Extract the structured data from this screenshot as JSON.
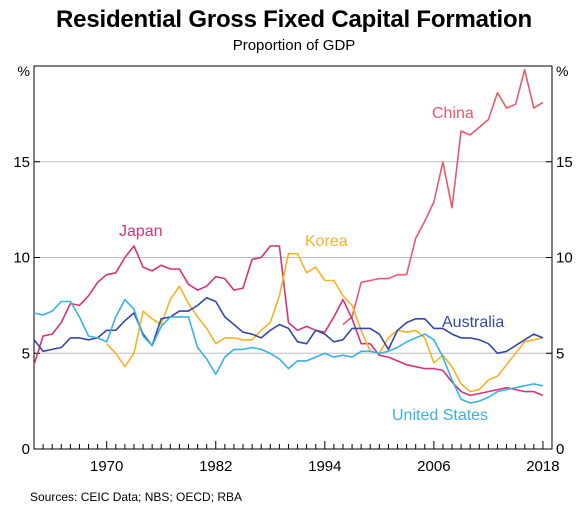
{
  "chart_data": {
    "type": "line",
    "title": "Residential Gross Fixed Capital Formation",
    "subtitle": "Proportion of GDP",
    "unit_left": "%",
    "unit_right": "%",
    "xlim": [
      1962,
      2019
    ],
    "ylim": [
      0,
      20
    ],
    "x_ticks": [
      "1970",
      "1982",
      "1994",
      "2006",
      "2018"
    ],
    "y_ticks": [
      "0",
      "5",
      "10",
      "15"
    ],
    "grid": true,
    "series": [
      {
        "name": "China",
        "color": "#e8596b",
        "x": [
          1996,
          1997,
          1998,
          1999,
          2000,
          2001,
          2002,
          2003,
          2004,
          2005,
          2006,
          2007,
          2008,
          2009,
          2010,
          2011,
          2012,
          2013,
          2014,
          2015,
          2016,
          2017,
          2018
        ],
        "values": [
          6.5,
          6.9,
          8.7,
          8.8,
          8.9,
          8.9,
          9.1,
          9.1,
          11.0,
          11.9,
          12.9,
          15.0,
          12.6,
          16.6,
          16.4,
          16.8,
          17.2,
          18.6,
          17.8,
          18.0,
          19.8,
          17.8,
          18.1
        ]
      },
      {
        "name": "Japan",
        "color": "#d6317b",
        "x": [
          1962,
          1963,
          1964,
          1965,
          1966,
          1967,
          1968,
          1969,
          1970,
          1971,
          1972,
          1973,
          1974,
          1975,
          1976,
          1977,
          1978,
          1979,
          1980,
          1981,
          1982,
          1983,
          1984,
          1985,
          1986,
          1987,
          1988,
          1989,
          1990,
          1991,
          1992,
          1993,
          1994,
          1995,
          1996,
          1997,
          1998,
          1999,
          2000,
          2001,
          2002,
          2003,
          2004,
          2005,
          2006,
          2007,
          2008,
          2009,
          2010,
          2011,
          2012,
          2013,
          2014,
          2015,
          2016,
          2017,
          2018
        ],
        "values": [
          4.4,
          5.9,
          6.0,
          6.6,
          7.6,
          7.5,
          8.0,
          8.7,
          9.1,
          9.2,
          10.0,
          10.6,
          9.5,
          9.3,
          9.6,
          9.4,
          9.4,
          8.6,
          8.3,
          8.5,
          9.0,
          8.9,
          8.3,
          8.4,
          9.9,
          10.0,
          10.6,
          10.6,
          6.6,
          6.2,
          6.4,
          6.2,
          6.1,
          6.9,
          7.8,
          6.8,
          5.5,
          5.5,
          4.9,
          4.8,
          4.6,
          4.4,
          4.3,
          4.2,
          4.2,
          4.1,
          3.5,
          3.0,
          2.8,
          2.9,
          3.0,
          3.1,
          3.2,
          3.1,
          3.0,
          3.0,
          2.8
        ]
      },
      {
        "name": "Korea",
        "color": "#f5b324",
        "x": [
          1970,
          1971,
          1972,
          1973,
          1974,
          1975,
          1976,
          1977,
          1978,
          1979,
          1980,
          1981,
          1982,
          1983,
          1984,
          1985,
          1986,
          1987,
          1988,
          1989,
          1990,
          1991,
          1992,
          1993,
          1994,
          1995,
          1996,
          1997,
          1998,
          1999,
          2000,
          2001,
          2002,
          2003,
          2004,
          2005,
          2006,
          2007,
          2008,
          2009,
          2010,
          2011,
          2012,
          2013,
          2014,
          2015,
          2016,
          2017,
          2018
        ],
        "values": [
          5.5,
          5.0,
          4.3,
          5.0,
          7.2,
          6.8,
          6.5,
          7.8,
          8.5,
          7.6,
          6.9,
          6.3,
          5.5,
          5.8,
          5.8,
          5.7,
          5.7,
          6.2,
          6.6,
          8.0,
          10.2,
          10.2,
          9.2,
          9.5,
          8.8,
          8.8,
          8.0,
          7.5,
          6.2,
          5.1,
          5.0,
          5.8,
          6.2,
          6.1,
          6.2,
          5.8,
          4.5,
          4.9,
          4.3,
          3.4,
          3.0,
          3.1,
          3.6,
          3.8,
          4.4,
          5.0,
          5.6,
          5.7,
          5.8
        ]
      },
      {
        "name": "Australia",
        "color": "#3448a8",
        "x": [
          1962,
          1963,
          1964,
          1965,
          1966,
          1967,
          1968,
          1969,
          1970,
          1971,
          1972,
          1973,
          1974,
          1975,
          1976,
          1977,
          1978,
          1979,
          1980,
          1981,
          1982,
          1983,
          1984,
          1985,
          1986,
          1987,
          1988,
          1989,
          1990,
          1991,
          1992,
          1993,
          1994,
          1995,
          1996,
          1997,
          1998,
          1999,
          2000,
          2001,
          2002,
          2003,
          2004,
          2005,
          2006,
          2007,
          2008,
          2009,
          2010,
          2011,
          2012,
          2013,
          2014,
          2015,
          2016,
          2017,
          2018
        ],
        "values": [
          5.7,
          5.1,
          5.2,
          5.3,
          5.8,
          5.8,
          5.7,
          5.8,
          6.2,
          6.2,
          6.7,
          7.1,
          6.0,
          5.4,
          6.8,
          6.9,
          7.2,
          7.2,
          7.5,
          7.9,
          7.7,
          6.9,
          6.5,
          6.1,
          6.0,
          5.8,
          6.2,
          6.5,
          6.3,
          5.6,
          5.5,
          6.2,
          6.0,
          5.6,
          5.7,
          6.3,
          6.3,
          6.3,
          6.0,
          5.2,
          6.2,
          6.6,
          6.8,
          6.8,
          6.3,
          6.3,
          6.0,
          5.8,
          5.8,
          5.7,
          5.5,
          5.0,
          5.1,
          5.4,
          5.7,
          6.0,
          5.8
        ]
      },
      {
        "name": "United States",
        "color": "#3ab1e3",
        "x": [
          1962,
          1963,
          1964,
          1965,
          1966,
          1967,
          1968,
          1969,
          1970,
          1971,
          1972,
          1973,
          1974,
          1975,
          1976,
          1977,
          1978,
          1979,
          1980,
          1981,
          1982,
          1983,
          1984,
          1985,
          1986,
          1987,
          1988,
          1989,
          1990,
          1991,
          1992,
          1993,
          1994,
          1995,
          1996,
          1997,
          1998,
          1999,
          2000,
          2001,
          2002,
          2003,
          2004,
          2005,
          2006,
          2007,
          2008,
          2009,
          2010,
          2011,
          2012,
          2013,
          2014,
          2015,
          2016,
          2017,
          2018
        ],
        "values": [
          7.1,
          7.0,
          7.2,
          7.7,
          7.7,
          6.9,
          5.9,
          5.8,
          5.6,
          6.9,
          7.8,
          7.3,
          5.9,
          5.4,
          6.4,
          6.9,
          6.9,
          6.9,
          5.3,
          4.7,
          3.9,
          4.8,
          5.2,
          5.2,
          5.3,
          5.2,
          5.0,
          4.7,
          4.2,
          4.6,
          4.6,
          4.8,
          5.0,
          4.8,
          4.9,
          4.8,
          5.1,
          5.1,
          5.0,
          5.1,
          5.3,
          5.6,
          5.8,
          6.0,
          5.7,
          4.8,
          3.6,
          2.6,
          2.4,
          2.5,
          2.7,
          3.0,
          3.1,
          3.2,
          3.3,
          3.4,
          3.3
        ]
      }
    ],
    "series_labels": [
      "China",
      "Japan",
      "Korea",
      "Australia",
      "United States"
    ]
  },
  "source_text": "Sources: CEIC Data; NBS; OECD; RBA"
}
